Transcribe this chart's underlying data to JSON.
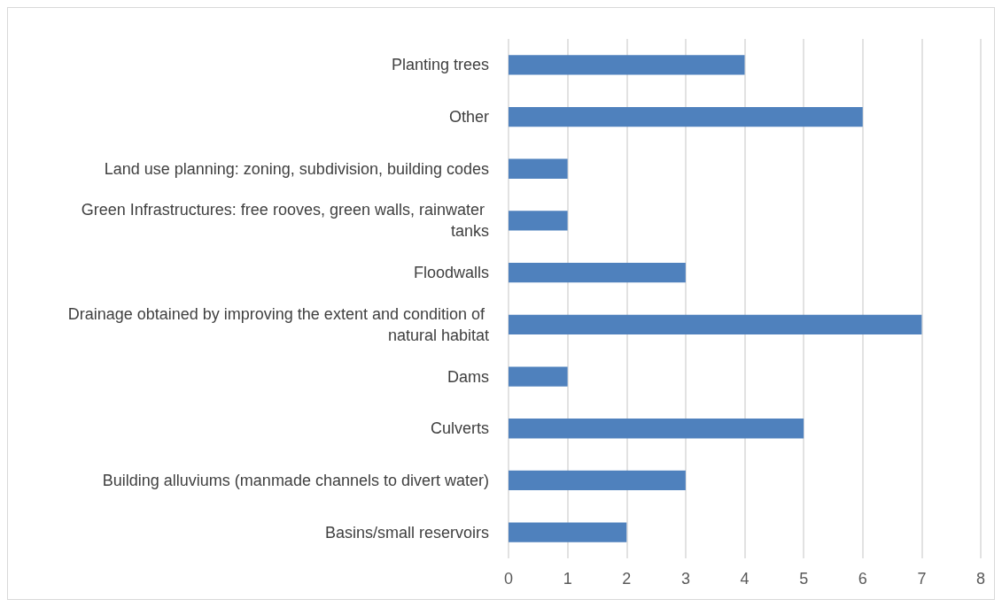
{
  "chart_data": {
    "type": "bar",
    "orientation": "horizontal",
    "categories": [
      "Planting trees",
      "Other",
      "Land use planning: zoning, subdivision, building codes",
      "Green Infrastructures: free rooves, green walls, rainwater tanks",
      "Floodwalls",
      "Drainage obtained by improving the extent and condition of natural habitat",
      "Dams",
      "Culverts",
      "Building alluviums (manmade channels to divert water)",
      "Basins/small reservoirs"
    ],
    "values": [
      4,
      6,
      1,
      1,
      3,
      7,
      1,
      5,
      3,
      2
    ],
    "color": "#4f81bd",
    "xlim": [
      0,
      8
    ],
    "xticks": [
      0,
      1,
      2,
      3,
      4,
      5,
      6,
      7,
      8
    ],
    "grid": "x"
  }
}
